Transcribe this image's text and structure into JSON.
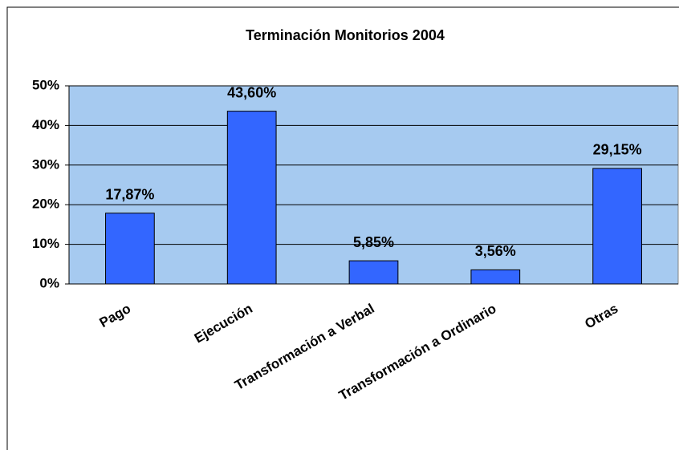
{
  "chart_data": {
    "type": "bar",
    "title": "Terminación Monitorios 2004",
    "categories": [
      "Pago",
      "Ejecución",
      "Transformación a Verbal",
      "Transformación a Ordinario",
      "Otras"
    ],
    "values": [
      17.87,
      43.6,
      5.85,
      3.56,
      29.15
    ],
    "value_labels": [
      "17,87%",
      "43,60%",
      "5,85%",
      "3,56%",
      "29,15%"
    ],
    "color": "#3366ff",
    "ylim": [
      0,
      50
    ],
    "yticks": [
      {
        "value": 0,
        "label": "0%"
      },
      {
        "value": 10,
        "label": "10%"
      },
      {
        "value": 20,
        "label": "20%"
      },
      {
        "value": 30,
        "label": "30%"
      },
      {
        "value": 40,
        "label": "40%"
      },
      {
        "value": 50,
        "label": "50%"
      }
    ],
    "grid": true
  }
}
